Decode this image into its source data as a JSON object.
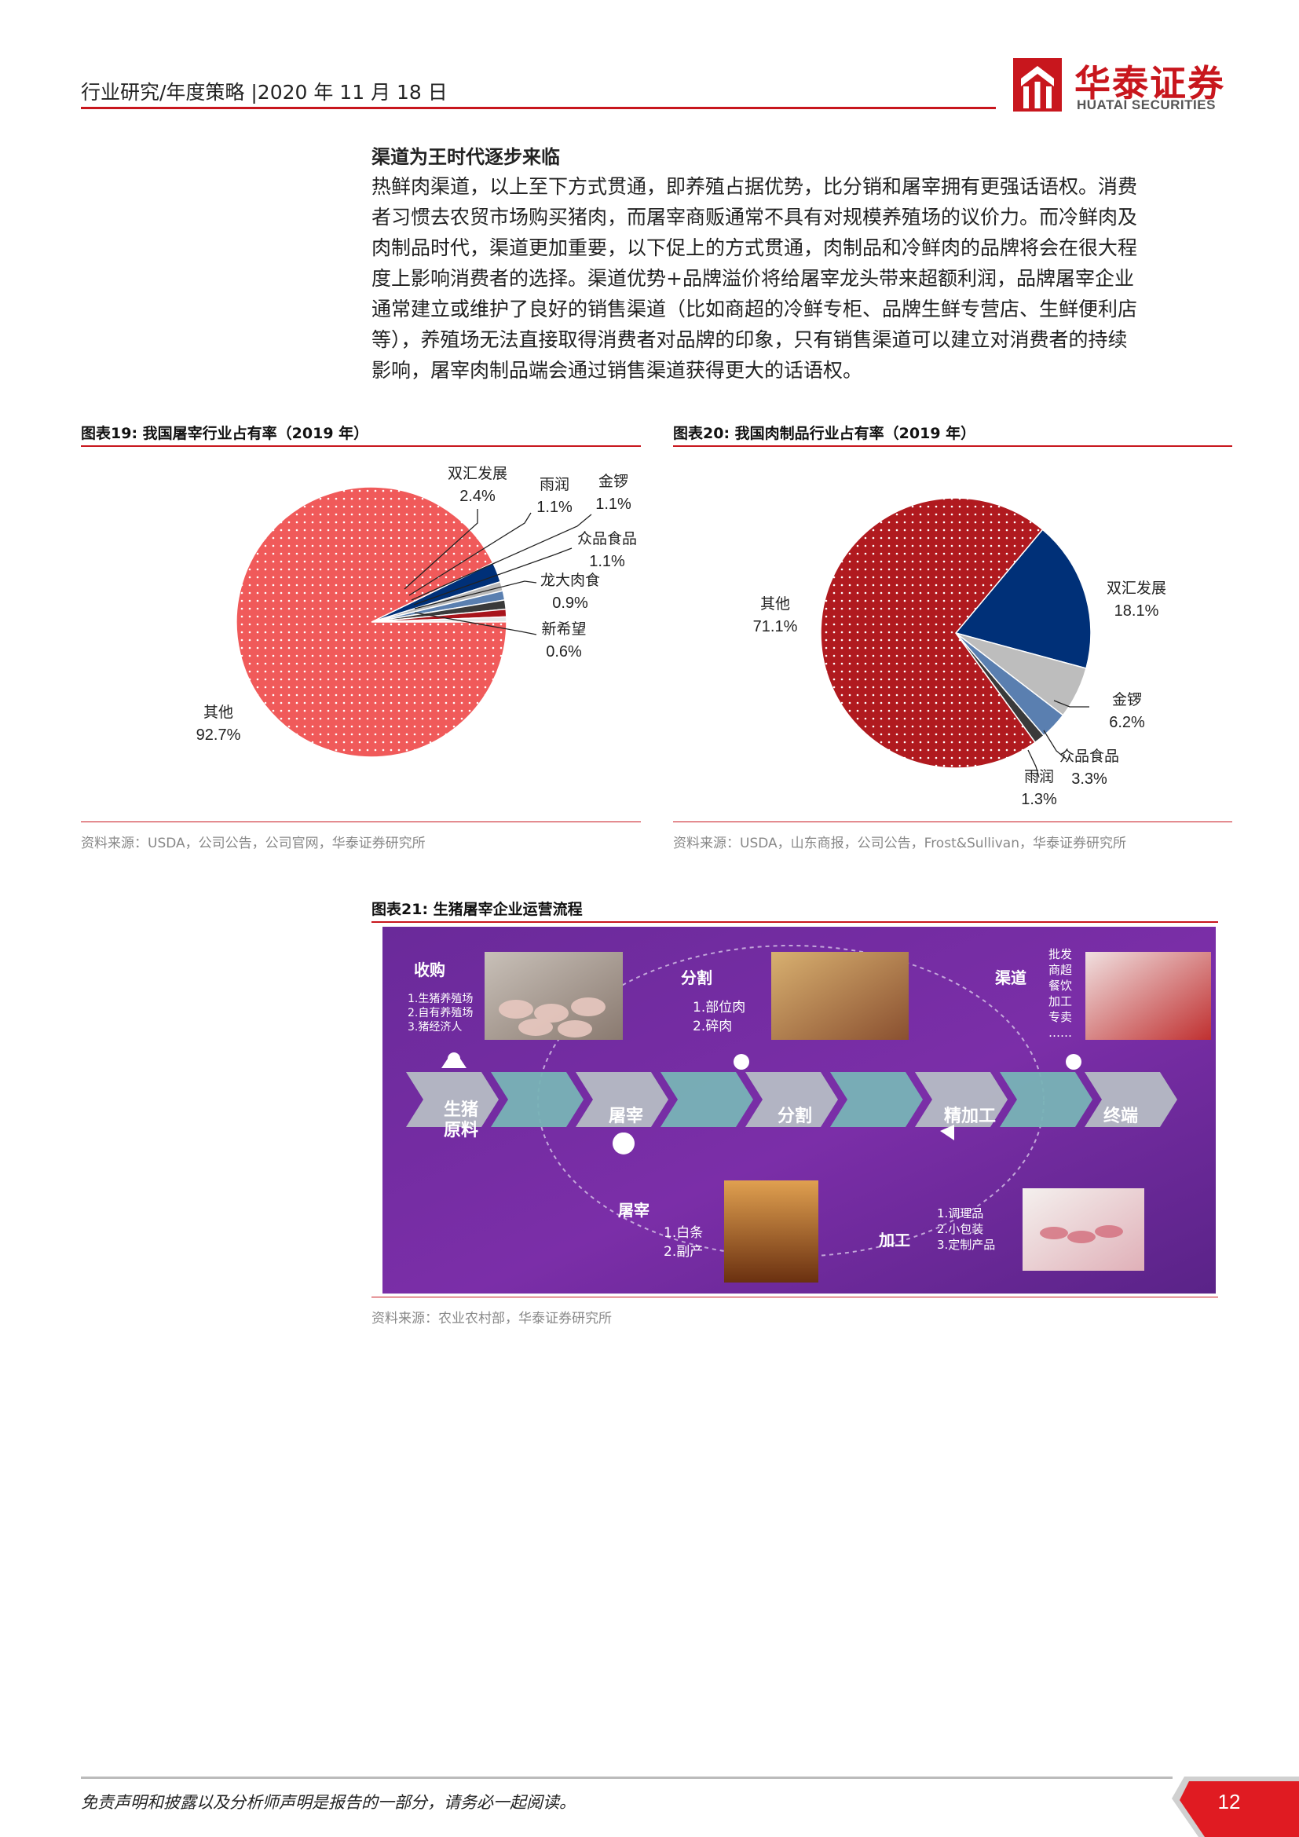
{
  "header": {
    "text": "行业研究/年度策略 |2020 年 11 月 18 日",
    "logo_cn": "华泰证券",
    "logo_en": "HUATAI SECURITIES",
    "brand_color": "#c8161d"
  },
  "section": {
    "title": "渠道为王时代逐步来临",
    "lines": [
      "热鲜肉渠道，以上至下方式贯通，即养殖占据优势，比分销和屠宰拥有更强话语权。消费",
      "者习惯去农贸市场购买猪肉，而屠宰商贩通常不具有对规模养殖场的议价力。而冷鲜肉及",
      "肉制品时代，渠道更加重要，以下促上的方式贯通，肉制品和冷鲜肉的品牌将会在很大程",
      "度上影响消费者的选择。渠道优势+品牌溢价将给屠宰龙头带来超额利润，品牌屠宰企业",
      "通常建立或维护了良好的销售渠道（比如商超的冷鲜专柜、品牌生鲜专营店、生鲜便利店",
      "等），养殖场无法直接取得消费者对品牌的印象，只有销售渠道可以建立对消费者的持续",
      "影响，屠宰肉制品端会通过销售渠道获得更大的话语权。"
    ]
  },
  "figures": {
    "fig19": {
      "caption": "图表19:   我国屠宰行业占有率（2019 年）",
      "source": "资料来源：USDA，公司公告，公司官网，华泰证券研究所"
    },
    "fig20": {
      "caption": "图表20:   我国肉制品行业占有率（2019 年）",
      "source": "资料来源：USDA，山东商报，公司公告，Frost&Sullivan，华泰证券研究所"
    },
    "fig21": {
      "caption": "图表21:   生猪屠宰企业运营流程",
      "source": "资料来源：农业农村部，华泰证券研究所"
    }
  },
  "chart_data": [
    {
      "type": "pie",
      "slices": [
        {
          "name": "双汇发展",
          "value": 2.4,
          "label": "2.4%",
          "color": "#003078"
        },
        {
          "name": "雨润",
          "value": 1.1,
          "label": "1.1%",
          "color": "#b8b8b8"
        },
        {
          "name": "金锣",
          "value": 1.1,
          "label": "1.1%",
          "color": "#5a7fb0"
        },
        {
          "name": "众品食品",
          "value": 1.1,
          "label": "1.1%",
          "color": "#3a3a3a"
        },
        {
          "name": "龙大肉食",
          "value": 0.9,
          "label": "0.9%",
          "color": "#a8141b"
        },
        {
          "name": "新希望",
          "value": 0.6,
          "label": "0.6%",
          "color": "#e8e8e8"
        },
        {
          "name": "其他",
          "value": 92.7,
          "label": "92.7%",
          "color": "#f05a5a"
        }
      ]
    },
    {
      "type": "pie",
      "slices": [
        {
          "name": "双汇发展",
          "value": 18.1,
          "label": "18.1%",
          "color": "#003078"
        },
        {
          "name": "金锣",
          "value": 6.2,
          "label": "6.2%",
          "color": "#bdbdbd"
        },
        {
          "name": "众品食品",
          "value": 3.3,
          "label": "3.3%",
          "color": "#5a7fb0"
        },
        {
          "name": "雨润",
          "value": 1.3,
          "label": "1.3%",
          "color": "#3a3a3a"
        },
        {
          "name": "其他",
          "value": 71.1,
          "label": "71.1%",
          "color": "#b01a1f"
        }
      ]
    }
  ],
  "process": {
    "steps": [
      "生猪原料",
      "屠宰",
      "分割",
      "精加工",
      "终端"
    ],
    "groups": [
      {
        "title": "收购",
        "items": [
          "1.生猪养殖场",
          "2.自有养殖场",
          "3.猪经济人"
        ]
      },
      {
        "title": "分割",
        "items": [
          "1.部位肉",
          "2.碎肉"
        ]
      },
      {
        "title": "渠道",
        "items": [
          "批发",
          "商超",
          "餐饮",
          "加工",
          "专卖",
          "……"
        ]
      },
      {
        "title": "屠宰",
        "items": [
          "1.白条",
          "2.副产"
        ]
      },
      {
        "title": "加工",
        "items": [
          "1.调理品",
          "2.小包装",
          "3.定制产品"
        ]
      }
    ]
  },
  "footer": {
    "disclaimer": "免责声明和披露以及分析师声明是报告的一部分，请务必一起阅读。",
    "page": "12"
  }
}
